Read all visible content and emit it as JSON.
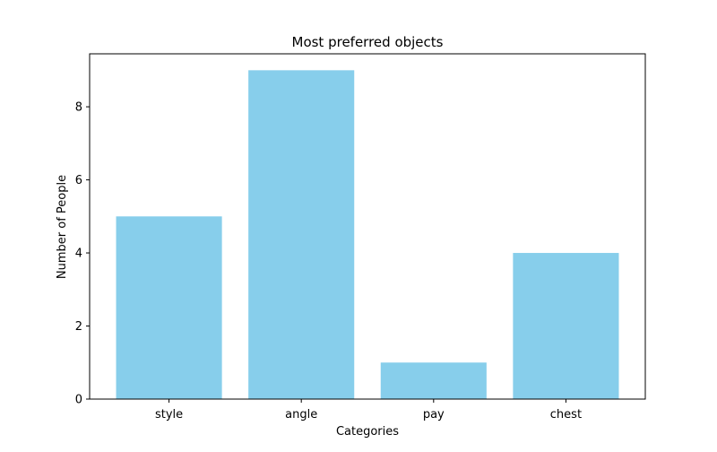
{
  "chart_data": {
    "type": "bar",
    "title": "Most preferred objects",
    "xlabel": "Categories",
    "ylabel": "Number of People",
    "categories": [
      "style",
      "angle",
      "pay",
      "chest"
    ],
    "values": [
      5,
      9,
      1,
      4
    ],
    "ylim": [
      0,
      9.45
    ],
    "yticks": [
      0,
      2,
      4,
      6,
      8
    ],
    "bar_color": "#87ceeb",
    "grid": false,
    "legend": "none"
  }
}
